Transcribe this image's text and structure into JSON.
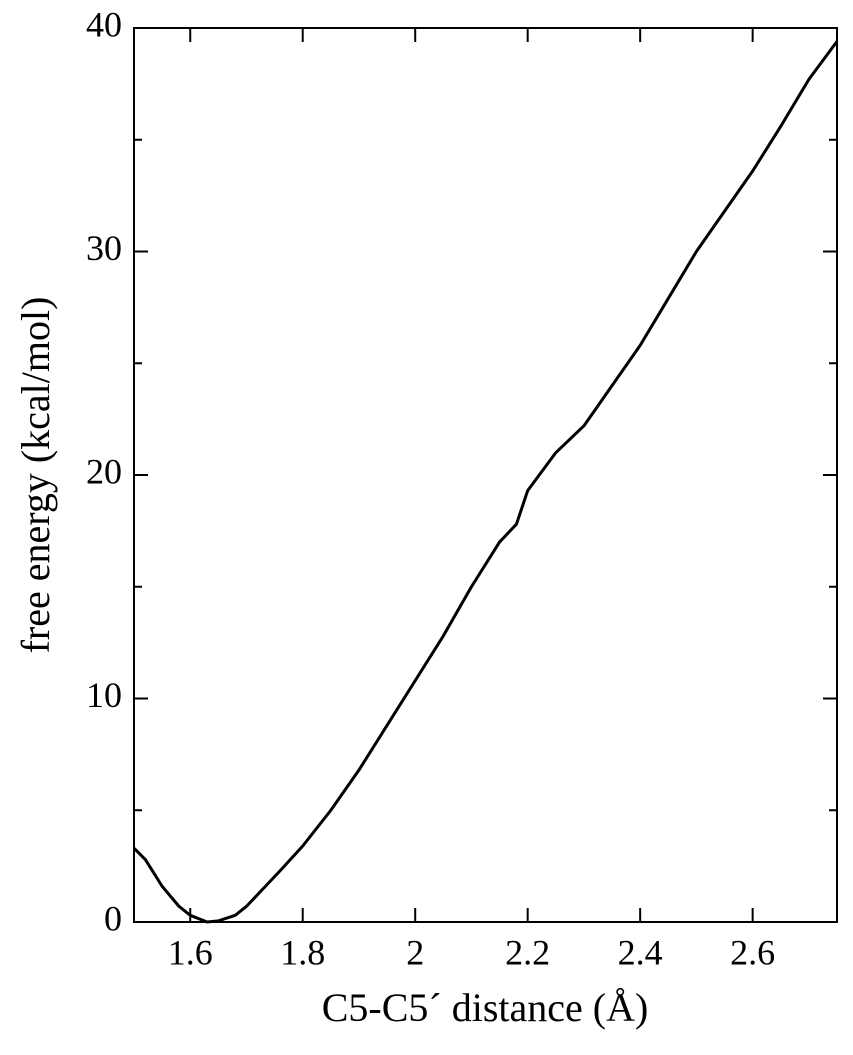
{
  "chart_data": {
    "type": "line",
    "x_label": "C5-C5´ distance  (Å)",
    "y_label": "free energy (kcal/mol)",
    "series": [
      {
        "color": "#000000",
        "x": [
          1.5,
          1.52,
          1.55,
          1.58,
          1.6,
          1.63,
          1.65,
          1.68,
          1.7,
          1.73,
          1.76,
          1.8,
          1.85,
          1.9,
          1.95,
          2.0,
          2.05,
          2.1,
          2.15,
          2.18,
          2.2,
          2.25,
          2.3,
          2.35,
          2.4,
          2.45,
          2.5,
          2.55,
          2.6,
          2.65,
          2.7,
          2.75
        ],
        "values": [
          3.3,
          2.8,
          1.6,
          0.7,
          0.3,
          0.0,
          0.05,
          0.3,
          0.7,
          1.5,
          2.3,
          3.4,
          5.0,
          6.8,
          8.8,
          10.8,
          12.8,
          15.0,
          17.0,
          17.8,
          19.3,
          21.0,
          22.2,
          24.0,
          25.8,
          27.9,
          30.0,
          31.8,
          33.6,
          35.6,
          37.7,
          39.4
        ]
      }
    ],
    "xlim": [
      1.5,
      2.75
    ],
    "xticks": [
      1.6,
      1.8,
      2,
      2.2,
      2.4,
      2.6
    ],
    "ylim": [
      0,
      40
    ],
    "yticks": [
      0,
      10,
      20,
      30,
      40
    ],
    "yminorticks": [
      5,
      15,
      25,
      35
    ]
  }
}
